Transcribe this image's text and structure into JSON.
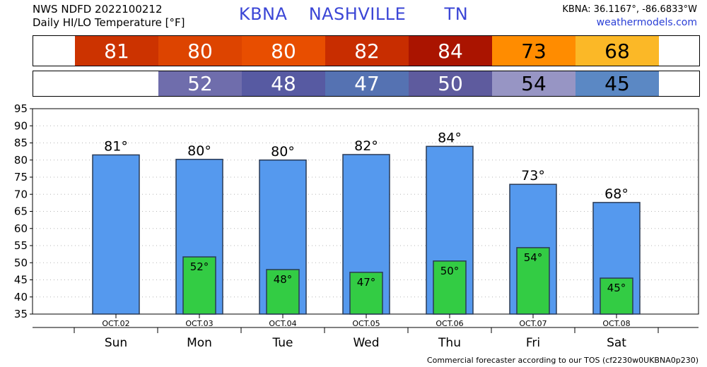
{
  "header": {
    "line1": "NWS NDFD 2022100212",
    "line2": "Daily HI/LO Temperature [°F]",
    "station": "KBNA",
    "city": "NASHVILLE",
    "state": "TN",
    "coords": "KBNA: 36.1167°, -86.6833°W",
    "site": "weathermodels.com"
  },
  "hi_strip": [
    {
      "text": "81",
      "bg": "#cc3300",
      "fg": "#ffffff"
    },
    {
      "text": "80",
      "bg": "#dd4400",
      "fg": "#ffffff"
    },
    {
      "text": "80",
      "bg": "#e84e00",
      "fg": "#ffffff"
    },
    {
      "text": "82",
      "bg": "#c82d00",
      "fg": "#ffffff"
    },
    {
      "text": "84",
      "bg": "#aa1400",
      "fg": "#ffffff"
    },
    {
      "text": "73",
      "bg": "#ff8c00",
      "fg": "#000000"
    },
    {
      "text": "68",
      "bg": "#fbb827",
      "fg": "#000000"
    }
  ],
  "lo_strip": [
    {
      "text": "52",
      "bg": "#6f6dac",
      "fg": "#ffffff"
    },
    {
      "text": "48",
      "bg": "#575aa2",
      "fg": "#ffffff"
    },
    {
      "text": "47",
      "bg": "#5572b2",
      "fg": "#ffffff"
    },
    {
      "text": "50",
      "bg": "#5e5b9e",
      "fg": "#ffffff"
    },
    {
      "text": "54",
      "bg": "#9795c4",
      "fg": "#000000"
    },
    {
      "text": "45",
      "bg": "#5b88c4",
      "fg": "#000000"
    }
  ],
  "chart_data": {
    "type": "bar",
    "categories": [
      "Sun",
      "Mon",
      "Tue",
      "Wed",
      "Thu",
      "Fri",
      "Sat"
    ],
    "dates": [
      "OCT.02",
      "OCT.03",
      "OCT.04",
      "OCT.05",
      "OCT.06",
      "OCT.07",
      "OCT.08"
    ],
    "series": [
      {
        "values": [
          81.5,
          80.2,
          80.0,
          81.6,
          84.0,
          72.9,
          67.6
        ],
        "labels": [
          "81°",
          "80°",
          "80°",
          "82°",
          "84°",
          "73°",
          "68°"
        ],
        "color": "#5599ee"
      },
      {
        "values": [
          null,
          51.7,
          48.0,
          47.2,
          50.5,
          54.4,
          45.5
        ],
        "labels": [
          "",
          "52°",
          "48°",
          "47°",
          "50°",
          "54°",
          "45°"
        ],
        "color": "#33cc44"
      }
    ],
    "ylim": [
      35,
      95
    ],
    "yticks": [
      35,
      40,
      45,
      50,
      55,
      60,
      65,
      70,
      75,
      80,
      85,
      90,
      95
    ],
    "grid": true,
    "footer": "Commercial forecaster according to our TOS (cf2230w0UKBNA0p230)"
  }
}
